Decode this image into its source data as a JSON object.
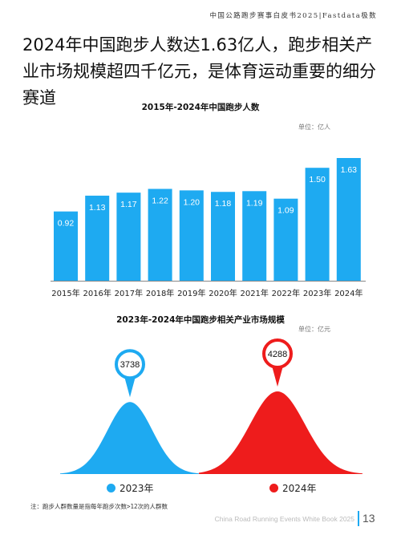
{
  "header": {
    "source": "中国公路跑步赛事白皮书2025|Fastdata极数"
  },
  "headline": "2024年中国跑步人数达1.63亿人，跑步相关产业市场规模超四千亿元，是体育运动重要的细分赛道",
  "chart_data": [
    {
      "type": "bar",
      "title": "2015年-2024年中国跑步人数",
      "unit": "单位：亿人",
      "categories": [
        "2015年",
        "2016年",
        "2017年",
        "2018年",
        "2019年",
        "2020年",
        "2021年",
        "2022年",
        "2023年",
        "2024年"
      ],
      "values": [
        0.92,
        1.13,
        1.17,
        1.22,
        1.2,
        1.18,
        1.19,
        1.09,
        1.5,
        1.63
      ],
      "value_labels": [
        "0.92",
        "1.13",
        "1.17",
        "1.22",
        "1.20",
        "1.18",
        "1.19",
        "1.09",
        "1.50",
        "1.63"
      ],
      "color": "#1eaaf1"
    },
    {
      "type": "area",
      "title": "2023年-2024年中国跑步相关产业市场规模",
      "unit": "单位：亿元",
      "series": [
        {
          "name": "2023年",
          "value": 3738,
          "label": "3738",
          "color": "#1eaaf1"
        },
        {
          "name": "2024年",
          "value": 4288,
          "label": "4288",
          "color": "#ee1c1c"
        }
      ]
    }
  ],
  "footnote": "注：跑步人群数量是指每年跑步次数>12次的人群数",
  "footer": {
    "text": "China Road Running Events White Book 2025",
    "page_number": "13"
  }
}
